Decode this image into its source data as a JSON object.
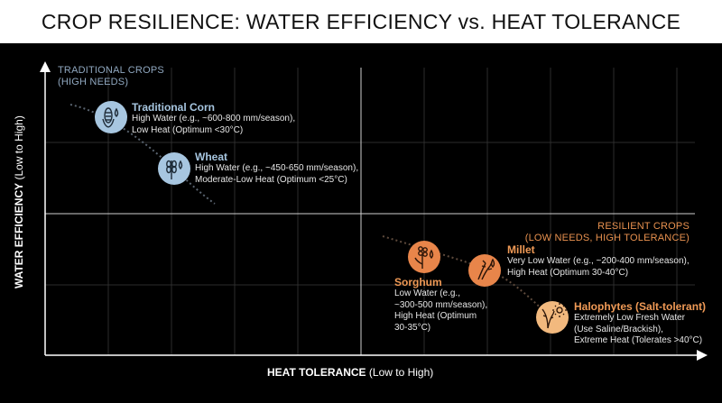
{
  "title": "CROP RESILIENCE: WATER EFFICIENCY vs. HEAT TOLERANCE",
  "axes": {
    "x_bold": "HEAT TOLERANCE",
    "x_rest": " (Low to High)",
    "y_bold": "WATER EFFICIENCY",
    "y_rest": " (Low to High)"
  },
  "quadrants": {
    "top_left": {
      "line1": "TRADITIONAL CROPS",
      "line2": "(HIGH NEEDS)"
    },
    "bottom_right": {
      "line1": "RESILIENT CROPS",
      "line2": "(LOW NEEDS, HIGH TOLERANCE)"
    }
  },
  "crops": [
    {
      "name": "Traditional Corn",
      "icon": "corn-icon",
      "color": "#a7c6e0",
      "description": "High Water (e.g., ~600-800 mm/season),\nLow Heat (Optimum <30°C)"
    },
    {
      "name": "Wheat",
      "icon": "wheat-icon",
      "color": "#a7c6e0",
      "description": "High Water (e.g., ~450-650 mm/season),\nModerate-Low Heat (Optimum <25°C)"
    },
    {
      "name": "Sorghum",
      "icon": "sorghum-icon",
      "color": "#e8854a",
      "description": "Low Water (e.g.,\n~300-500 mm/season),\nHigh Heat (Optimum\n30-35°C)"
    },
    {
      "name": "Millet",
      "icon": "millet-icon",
      "color": "#e8854a",
      "description": "Very Low Water (e.g., ~200-400 mm/season),\nHigh Heat (Optimum 30-40°C)"
    },
    {
      "name": "Halophytes (Salt-tolerant)",
      "icon": "halophyte-sun-icon",
      "color": "#f2b97e",
      "description": "Extremely Low Fresh Water\n(Use Saline/Brackish),\nExtreme Heat (Tolerates >40°C)"
    }
  ]
}
